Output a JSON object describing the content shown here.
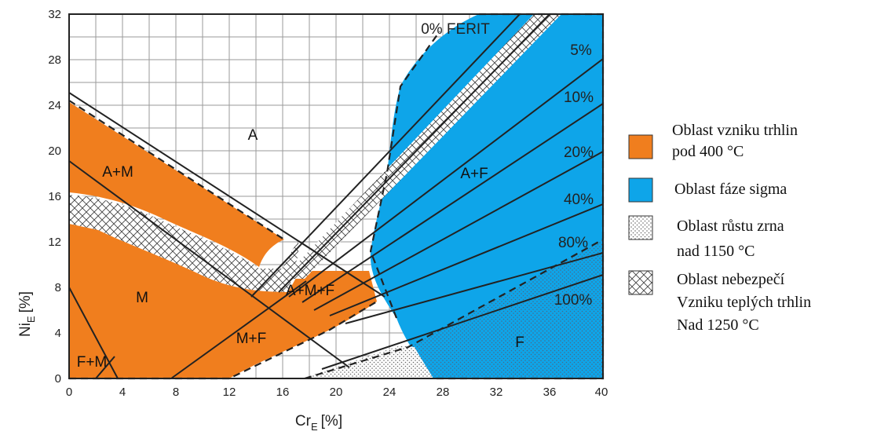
{
  "diagram": {
    "x_axis": {
      "label_main": "Cr",
      "label_sub": "E",
      "label_unit": "[%]",
      "ticks": [
        "0",
        "4",
        "8",
        "12",
        "16",
        "20",
        "24",
        "28",
        "32",
        "36",
        "40"
      ]
    },
    "y_axis": {
      "label_main": "Ni",
      "label_sub": "E",
      "label_unit": "[%]",
      "ticks": [
        "0",
        "4",
        "8",
        "12",
        "16",
        "20",
        "24",
        "28",
        "32"
      ]
    },
    "regions": {
      "austenite": "A",
      "austenite_martensite": "A+M",
      "martensite": "M",
      "ferrite_martensite": "F+M",
      "martensite_ferrite": "M+F",
      "austenite_martensite_ferrite": "A+M+F",
      "austenite_ferrite": "A+F",
      "ferrite": "F"
    },
    "ferrite_lines": [
      "0% FERIT",
      "5%",
      "10%",
      "20%",
      "40%",
      "80%",
      "100%"
    ]
  },
  "legend": [
    {
      "id": "crack-400",
      "color": "#F07E1E",
      "pattern": "solid",
      "lines": [
        "Oblast vzniku trhlin",
        "pod 400 °C"
      ]
    },
    {
      "id": "sigma",
      "color": "#0EA5E9",
      "pattern": "solid",
      "lines": [
        "Oblast fáze sigma"
      ]
    },
    {
      "id": "grain-growth",
      "color": "#ffffff",
      "pattern": "dots",
      "lines": [
        "Oblast růstu zrna",
        "nad 1150 °C"
      ]
    },
    {
      "id": "hot-crack",
      "color": "#ffffff",
      "pattern": "crosshatch",
      "lines": [
        "Oblast nebezpečí",
        "Vzniku teplých trhlin",
        "Nad 1250 °C"
      ]
    }
  ],
  "colors": {
    "orange": "#F07E1E",
    "blue": "#0EA5E9",
    "grid": "#9a9a9a",
    "line": "#222222"
  }
}
